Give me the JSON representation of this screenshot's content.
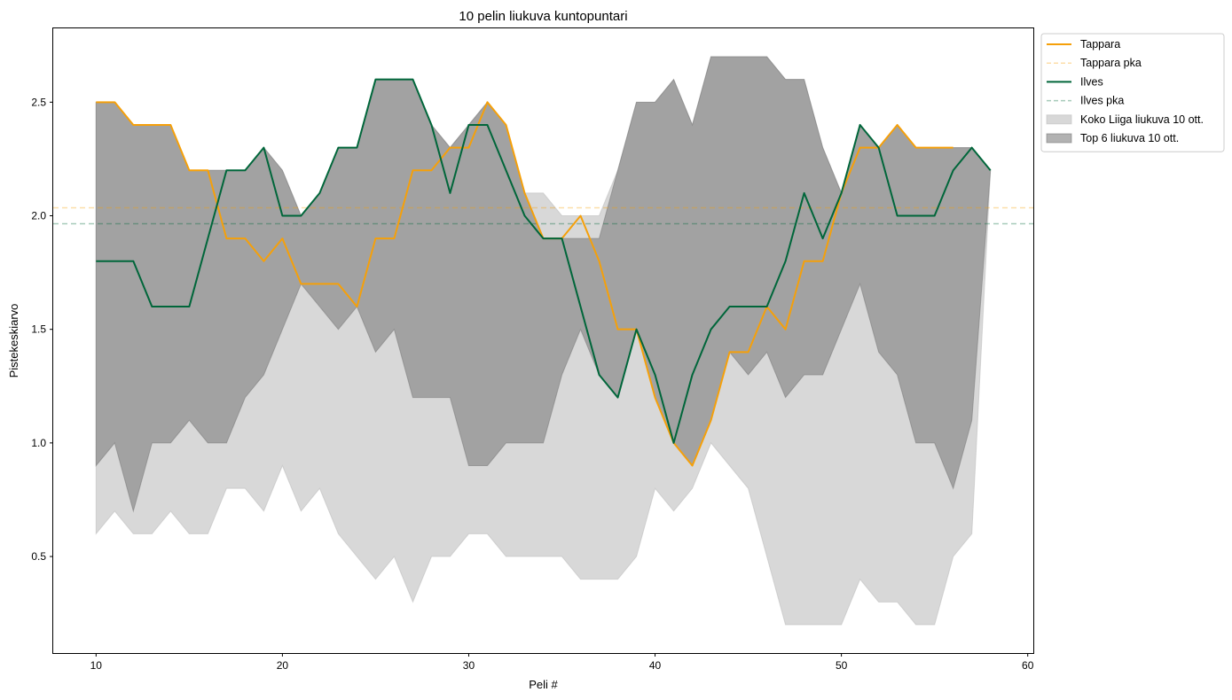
{
  "chart_data": {
    "type": "line",
    "title": "10 pelin liukuva kuntopuntari",
    "xlabel": "Peli #",
    "ylabel": "Pistekeskiarvo",
    "xlim": [
      7.7,
      60.3
    ],
    "ylim": [
      0.075,
      2.825
    ],
    "xticks": [
      10,
      20,
      30,
      40,
      50,
      60
    ],
    "yticks": [
      0.5,
      1.0,
      1.5,
      2.0,
      2.5
    ],
    "ytick_labels": [
      "0.5",
      "1.0",
      "1.5",
      "2.0",
      "2.5"
    ],
    "grid": false,
    "legend_position": "outside upper right",
    "series": [
      {
        "name": "Tappara",
        "kind": "line",
        "color": "#f5a00a",
        "x": [
          10,
          11,
          12,
          13,
          14,
          15,
          16,
          17,
          18,
          19,
          20,
          21,
          22,
          23,
          24,
          25,
          26,
          27,
          28,
          29,
          30,
          31,
          32,
          33,
          34,
          35,
          36,
          37,
          38,
          39,
          40,
          41,
          42,
          43,
          44,
          45,
          46,
          47,
          48,
          49,
          50,
          51,
          52,
          53,
          54,
          55,
          56
        ],
        "y": [
          2.5,
          2.5,
          2.4,
          2.4,
          2.4,
          2.2,
          2.2,
          1.9,
          1.9,
          1.8,
          1.9,
          1.7,
          1.7,
          1.7,
          1.6,
          1.9,
          1.9,
          2.2,
          2.2,
          2.3,
          2.3,
          2.5,
          2.4,
          2.1,
          1.9,
          1.9,
          2.0,
          1.8,
          1.5,
          1.5,
          1.2,
          1.0,
          0.9,
          1.1,
          1.4,
          1.4,
          1.6,
          1.5,
          1.8,
          1.8,
          2.1,
          2.3,
          2.3,
          2.4,
          2.3,
          2.3,
          2.3
        ]
      },
      {
        "name": "Tappara pka",
        "kind": "hline",
        "color": "#f5a00a",
        "value": 2.035
      },
      {
        "name": "Ilves",
        "kind": "line",
        "color": "#00663a",
        "x": [
          10,
          11,
          12,
          13,
          14,
          15,
          16,
          17,
          18,
          19,
          20,
          21,
          22,
          23,
          24,
          25,
          26,
          27,
          28,
          29,
          30,
          31,
          32,
          33,
          34,
          35,
          36,
          37,
          38,
          39,
          40,
          41,
          42,
          43,
          44,
          45,
          46,
          47,
          48,
          49,
          50,
          51,
          52,
          53,
          54,
          55,
          56,
          57,
          58
        ],
        "y": [
          1.8,
          1.8,
          1.8,
          1.6,
          1.6,
          1.6,
          1.9,
          2.2,
          2.2,
          2.3,
          2.0,
          2.0,
          2.1,
          2.3,
          2.3,
          2.6,
          2.6,
          2.6,
          2.4,
          2.1,
          2.4,
          2.4,
          2.2,
          2.0,
          1.9,
          1.9,
          1.6,
          1.3,
          1.2,
          1.5,
          1.3,
          1.0,
          1.3,
          1.5,
          1.6,
          1.6,
          1.6,
          1.8,
          2.1,
          1.9,
          2.1,
          2.4,
          2.3,
          2.0,
          2.0,
          2.0,
          2.2,
          2.3,
          2.2
        ]
      },
      {
        "name": "Ilves pka",
        "kind": "hline",
        "color": "#00663a",
        "value": 1.965
      },
      {
        "name": "Koko Liiga liukuva 10 ott.",
        "kind": "band",
        "color": "#bebebe",
        "x": [
          10,
          11,
          12,
          13,
          14,
          15,
          16,
          17,
          18,
          19,
          20,
          21,
          22,
          23,
          24,
          25,
          26,
          27,
          28,
          29,
          30,
          31,
          32,
          33,
          34,
          35,
          36,
          37,
          38,
          39,
          40,
          41,
          42,
          43,
          44,
          45,
          46,
          47,
          48,
          49,
          50,
          51,
          52,
          53,
          54,
          55,
          56,
          57,
          58
        ],
        "low": [
          0.6,
          0.7,
          0.6,
          0.6,
          0.7,
          0.6,
          0.6,
          0.8,
          0.8,
          0.7,
          0.9,
          0.7,
          0.8,
          0.6,
          0.5,
          0.4,
          0.5,
          0.3,
          0.5,
          0.5,
          0.6,
          0.6,
          0.5,
          0.5,
          0.5,
          0.5,
          0.4,
          0.4,
          0.4,
          0.5,
          0.8,
          0.7,
          0.8,
          1.0,
          0.9,
          0.8,
          0.5,
          0.2,
          0.2,
          0.2,
          0.2,
          0.4,
          0.3,
          0.3,
          0.2,
          0.2,
          0.5,
          0.6,
          2.2
        ],
        "high": [
          2.5,
          2.5,
          2.4,
          2.4,
          2.4,
          2.2,
          2.2,
          2.2,
          2.2,
          2.3,
          2.2,
          2.0,
          2.1,
          2.3,
          2.3,
          2.6,
          2.6,
          2.6,
          2.4,
          2.3,
          2.4,
          2.5,
          2.4,
          2.1,
          2.1,
          2.0,
          2.0,
          2.0,
          2.2,
          2.5,
          2.5,
          2.6,
          2.4,
          2.7,
          2.7,
          2.7,
          2.7,
          2.6,
          2.6,
          2.3,
          2.1,
          2.4,
          2.3,
          2.4,
          2.3,
          2.3,
          2.3,
          2.3,
          2.2
        ]
      },
      {
        "name": "Top 6 liukuva 10 ott.",
        "kind": "band",
        "color": "#7f7f7f",
        "x": [
          10,
          11,
          12,
          13,
          14,
          15,
          16,
          17,
          18,
          19,
          20,
          21,
          22,
          23,
          24,
          25,
          26,
          27,
          28,
          29,
          30,
          31,
          32,
          33,
          34,
          35,
          36,
          37,
          38,
          39,
          40,
          41,
          42,
          43,
          44,
          45,
          46,
          47,
          48,
          49,
          50,
          51,
          52,
          53,
          54,
          55,
          56,
          57,
          58
        ],
        "low": [
          0.9,
          1.0,
          0.7,
          1.0,
          1.0,
          1.1,
          1.0,
          1.0,
          1.2,
          1.3,
          1.5,
          1.7,
          1.6,
          1.5,
          1.6,
          1.4,
          1.5,
          1.2,
          1.2,
          1.2,
          0.9,
          0.9,
          1.0,
          1.0,
          1.0,
          1.3,
          1.5,
          1.3,
          1.2,
          1.5,
          1.2,
          1.0,
          0.9,
          1.1,
          1.4,
          1.3,
          1.4,
          1.2,
          1.3,
          1.3,
          1.5,
          1.7,
          1.4,
          1.3,
          1.0,
          1.0,
          0.8,
          1.1,
          2.2
        ],
        "high": [
          2.5,
          2.5,
          2.4,
          2.4,
          2.4,
          2.2,
          2.2,
          2.2,
          2.2,
          2.3,
          2.2,
          2.0,
          2.1,
          2.3,
          2.3,
          2.6,
          2.6,
          2.6,
          2.4,
          2.3,
          2.4,
          2.5,
          2.4,
          2.1,
          1.9,
          1.9,
          1.9,
          1.9,
          2.2,
          2.5,
          2.5,
          2.6,
          2.4,
          2.7,
          2.7,
          2.7,
          2.7,
          2.6,
          2.6,
          2.3,
          2.1,
          2.4,
          2.3,
          2.4,
          2.3,
          2.3,
          2.3,
          2.3,
          2.2
        ]
      }
    ],
    "legend": [
      {
        "label": "Tappara",
        "kind": "line",
        "color": "#f5a00a"
      },
      {
        "label": "Tappara pka",
        "kind": "dash",
        "color": "#f5a00a"
      },
      {
        "label": "Ilves",
        "kind": "line",
        "color": "#00663a"
      },
      {
        "label": "Ilves pka",
        "kind": "dash",
        "color": "#00663a"
      },
      {
        "label": "Koko Liiga liukuva 10 ott.",
        "kind": "patch",
        "color": "#bebebe"
      },
      {
        "label": "Top 6 liukuva 10 ott.",
        "kind": "patch",
        "color": "#7f7f7f"
      }
    ]
  }
}
